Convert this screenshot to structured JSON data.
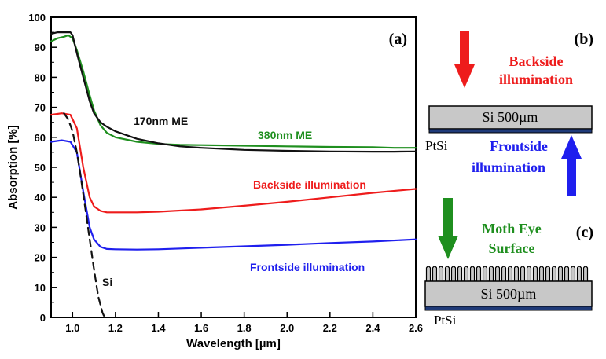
{
  "chart_data": {
    "type": "line",
    "panel_label": "(a)",
    "xlabel": "Wavelength [µm]",
    "ylabel": "Absorption [%]",
    "xlim": [
      0.9,
      2.6
    ],
    "ylim": [
      0,
      100
    ],
    "xticks": [
      "1.0",
      "1.2",
      "1.4",
      "1.6",
      "1.8",
      "2.0",
      "2.2",
      "2.4",
      "2.6"
    ],
    "yticks": [
      "0",
      "10",
      "20",
      "30",
      "40",
      "50",
      "60",
      "70",
      "80",
      "90",
      "100"
    ],
    "series": [
      {
        "name": "380nm ME",
        "label": "380nm ME",
        "color": "#1f8f1f",
        "dash": false,
        "x": [
          0.9,
          0.93,
          0.96,
          0.98,
          1.0,
          1.02,
          1.05,
          1.08,
          1.1,
          1.13,
          1.16,
          1.2,
          1.3,
          1.4,
          1.5,
          1.6,
          1.8,
          2.0,
          2.2,
          2.4,
          2.5,
          2.6
        ],
        "y": [
          92,
          93,
          93.5,
          94,
          93,
          89,
          82,
          74,
          69,
          64,
          61.5,
          60,
          58.5,
          57.8,
          57.5,
          57.4,
          57.2,
          57,
          56.8,
          56.7,
          56.5,
          56.5
        ]
      },
      {
        "name": "170nm ME",
        "label": "170nm ME",
        "color": "#111111",
        "dash": false,
        "x": [
          0.9,
          0.93,
          0.96,
          0.99,
          1.0,
          1.02,
          1.05,
          1.08,
          1.1,
          1.13,
          1.16,
          1.2,
          1.3,
          1.4,
          1.5,
          1.6,
          1.8,
          2.0,
          2.2,
          2.4,
          2.5,
          2.6
        ],
        "y": [
          94.5,
          95,
          95,
          95,
          94,
          88,
          80,
          72,
          68,
          65,
          63.5,
          62,
          59.5,
          58,
          57,
          56.5,
          55.8,
          55.5,
          55.3,
          55.2,
          55.2,
          55.3
        ]
      },
      {
        "name": "Backside illumination",
        "label": "Backside illumination",
        "color": "#ee1c1c",
        "dash": false,
        "x": [
          0.9,
          0.95,
          0.99,
          1.02,
          1.05,
          1.08,
          1.1,
          1.13,
          1.16,
          1.2,
          1.3,
          1.4,
          1.6,
          1.8,
          2.0,
          2.2,
          2.4,
          2.6
        ],
        "y": [
          67.5,
          68,
          67.5,
          63,
          50,
          40,
          37,
          35.5,
          35,
          35,
          35,
          35.2,
          36,
          37.2,
          38.5,
          40,
          41.5,
          42.8
        ]
      },
      {
        "name": "Frontside illumination",
        "label": "Frontside illumination",
        "color": "#1f1fee",
        "dash": false,
        "x": [
          0.9,
          0.95,
          0.99,
          1.02,
          1.05,
          1.08,
          1.1,
          1.13,
          1.16,
          1.2,
          1.3,
          1.4,
          1.6,
          1.8,
          2.0,
          2.2,
          2.4,
          2.6
        ],
        "y": [
          58.5,
          59,
          58.5,
          55,
          42,
          30,
          26,
          23.5,
          22.8,
          22.7,
          22.6,
          22.7,
          23.2,
          23.7,
          24.2,
          24.8,
          25.3,
          26
        ]
      },
      {
        "name": "Si",
        "label": "Si",
        "color": "#111111",
        "dash": true,
        "x": [
          0.96,
          0.98,
          1.0,
          1.02,
          1.04,
          1.06,
          1.08,
          1.1,
          1.12,
          1.14,
          1.15
        ],
        "y": [
          68,
          66,
          62,
          55,
          46,
          36,
          26,
          16,
          7,
          1.5,
          0
        ]
      }
    ]
  },
  "diagram_b": {
    "label": "(b)",
    "backside_text": [
      "Backside",
      "illumination"
    ],
    "frontside_text": [
      "Frontside",
      "illumination"
    ],
    "substrate_label": "Si 500µm",
    "layer_label": "PtSi",
    "colors": {
      "backside": "#ee1c1c",
      "frontside": "#1f1fee"
    }
  },
  "diagram_c": {
    "label": "(c)",
    "surface_text": [
      "Moth Eye",
      "Surface"
    ],
    "substrate_label": "Si 500µm",
    "layer_label": "PtSi",
    "color": "#1f8f1f"
  }
}
